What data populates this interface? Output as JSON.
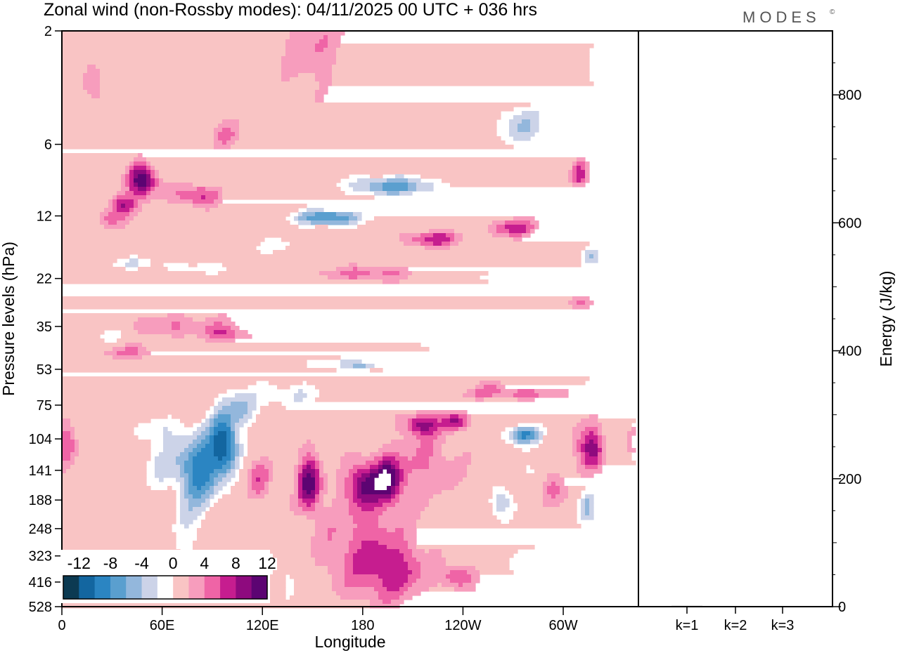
{
  "chart_data": {
    "type": "heatmap",
    "title": "Zonal wind (non-Rossby modes):  04/11/2025  00 UTC  + 036 hrs",
    "logo_text": "MODES",
    "logo_mark": "©",
    "xlabel": "Longitude",
    "ylabel": "Pressure levels (hPa)",
    "x_ticks": [
      "0",
      "60E",
      "120E",
      "180",
      "120W",
      "60W"
    ],
    "y_ticks": [
      "2",
      "6",
      "12",
      "22",
      "35",
      "53",
      "75",
      "104",
      "141",
      "188",
      "248",
      "323",
      "416",
      "528"
    ],
    "colorbar": {
      "tick_labels": [
        "-12",
        "-8",
        "-4",
        "0",
        "4",
        "8",
        "12"
      ],
      "levels": [
        -14,
        -12,
        -10,
        -8,
        -6,
        -4,
        -2,
        2,
        4,
        6,
        8,
        10,
        12,
        14
      ],
      "colors": [
        "#0c3a52",
        "#1366a0",
        "#2b85c2",
        "#5a9fcf",
        "#93b7dc",
        "#ccd3e8",
        "#ffffff",
        "#f9c4c4",
        "#f79dbd",
        "#ef64a6",
        "#c61d8f",
        "#8e0a7e",
        "#5c0472"
      ]
    },
    "regions": [
      {
        "lon": 48,
        "lev": 8.5,
        "w": 9,
        "h": 1.4,
        "amp": 12
      },
      {
        "lon": 36,
        "lev": 10.8,
        "w": 9,
        "h": 1.2,
        "amp": 8
      },
      {
        "lon": 28,
        "lev": 12.5,
        "w": 8,
        "h": 1.1,
        "amp": 5
      },
      {
        "lon": 80,
        "lev": 9.8,
        "w": 14,
        "h": 1.1,
        "amp": 7
      },
      {
        "lon": 20,
        "lev": 3.5,
        "w": 6,
        "h": 0.9,
        "amp": 4
      },
      {
        "lon": 150,
        "lev": 2.3,
        "w": 20,
        "h": 1.3,
        "amp": 4
      },
      {
        "lon": 98,
        "lev": 5.5,
        "w": 10,
        "h": 0.9,
        "amp": 4
      },
      {
        "lon": 160,
        "lev": 12.2,
        "w": 20,
        "h": 1.0,
        "amp": -11
      },
      {
        "lon": 198,
        "lev": 9.0,
        "w": 28,
        "h": 0.9,
        "amp": -9
      },
      {
        "lon": 128,
        "lev": 16.0,
        "w": 10,
        "h": 1.3,
        "amp": -4
      },
      {
        "lon": 275,
        "lev": 5.0,
        "w": 14,
        "h": 1.2,
        "amp": -6
      },
      {
        "lon": 320,
        "lev": 3.0,
        "w": 5,
        "h": 1.3,
        "amp": -3
      },
      {
        "lon": 45,
        "lev": 19.0,
        "w": 20,
        "h": 1.2,
        "amp": -4
      },
      {
        "lon": 88,
        "lev": 20.0,
        "w": 16,
        "h": 1.2,
        "amp": -4
      },
      {
        "lon": 250,
        "lev": 22.0,
        "w": 14,
        "h": 1.3,
        "amp": -4
      },
      {
        "lon": 318,
        "lev": 18.0,
        "w": 6,
        "h": 2.2,
        "amp": -6
      },
      {
        "lon": 310,
        "lev": 8.0,
        "w": 5,
        "h": 1.0,
        "amp": 7
      },
      {
        "lon": 222,
        "lev": 15.0,
        "w": 18,
        "h": 1.3,
        "amp": 7
      },
      {
        "lon": 270,
        "lev": 13.5,
        "w": 14,
        "h": 1.3,
        "amp": 7
      },
      {
        "lon": 182,
        "lev": 21.0,
        "w": 28,
        "h": 1.6,
        "amp": 5
      },
      {
        "lon": 250,
        "lev": 22.5,
        "w": 8,
        "h": 1.0,
        "amp": 3
      },
      {
        "lon": 310,
        "lev": 28.0,
        "w": 8,
        "h": 2.0,
        "amp": 4
      },
      {
        "lon": 70,
        "lev": 35.0,
        "w": 35,
        "h": 4.5,
        "amp": 4
      },
      {
        "lon": 40,
        "lev": 45.0,
        "w": 22,
        "h": 3.5,
        "amp": 4
      },
      {
        "lon": 100,
        "lev": 38.0,
        "w": 12,
        "h": 3.0,
        "amp": 5
      },
      {
        "lon": 270,
        "lev": 67.0,
        "w": 35,
        "h": 4.0,
        "amp": 5
      },
      {
        "lon": 258,
        "lev": 62.0,
        "w": 10,
        "h": 3.0,
        "amp": 3
      },
      {
        "lon": 178,
        "lev": 50.0,
        "w": 40,
        "h": 3.5,
        "amp": -4
      },
      {
        "lon": 180,
        "lev": 52.0,
        "w": 8,
        "h": 2.0,
        "amp": -4
      },
      {
        "lon": 220,
        "lev": 42.0,
        "w": 12,
        "h": 2.0,
        "amp": -2
      },
      {
        "lon": 30,
        "lev": 38.0,
        "w": 16,
        "h": 3.0,
        "amp": -3
      },
      {
        "lon": 320,
        "lev": 60.0,
        "w": 6,
        "h": 3.0,
        "amp": -3
      },
      {
        "lon": 82,
        "lev": 142.0,
        "w": 12,
        "h": 60.0,
        "amp": -11
      },
      {
        "lon": 97,
        "lev": 108.0,
        "w": 9,
        "h": 40.0,
        "amp": -13
      },
      {
        "lon": 108,
        "lev": 78.0,
        "w": 9,
        "h": 14.0,
        "amp": -6
      },
      {
        "lon": 135,
        "lev": 68.0,
        "w": 22,
        "h": 10.0,
        "amp": -4
      },
      {
        "lon": 60,
        "lev": 130.0,
        "w": 14,
        "h": 40.0,
        "amp": -4
      },
      {
        "lon": 60,
        "lev": 95.0,
        "w": 14,
        "h": 14.0,
        "amp": -3
      },
      {
        "lon": 118,
        "lev": 155.0,
        "w": 8,
        "h": 35.0,
        "amp": 5
      },
      {
        "lon": 148,
        "lev": 158.0,
        "w": 7,
        "h": 50.0,
        "amp": 11
      },
      {
        "lon": 180,
        "lev": 160.0,
        "w": 10,
        "h": 40.0,
        "amp": 9
      },
      {
        "lon": 195,
        "lev": 155.0,
        "w": 9,
        "h": 40.0,
        "amp": 10
      },
      {
        "lon": 215,
        "lev": 90.0,
        "w": 10,
        "h": 10.0,
        "amp": 8
      },
      {
        "lon": 236,
        "lev": 88.0,
        "w": 8,
        "h": 8.0,
        "amp": 8
      },
      {
        "lon": 180,
        "lev": 300.0,
        "w": 30,
        "h": 200.0,
        "amp": 5
      },
      {
        "lon": 200,
        "lev": 380.0,
        "w": 20,
        "h": 120.0,
        "amp": 5
      },
      {
        "lon": 237,
        "lev": 395.0,
        "w": 10,
        "h": 50.0,
        "amp": 6
      },
      {
        "lon": 218,
        "lev": 130.0,
        "w": 22,
        "h": 60.0,
        "amp": 4
      },
      {
        "lon": 276,
        "lev": 100.0,
        "w": 11,
        "h": 10.0,
        "amp": -10
      },
      {
        "lon": 286,
        "lev": 140.0,
        "w": 14,
        "h": 24.0,
        "amp": -3
      },
      {
        "lon": 262,
        "lev": 190.0,
        "w": 7,
        "h": 35.0,
        "amp": -6
      },
      {
        "lon": 314,
        "lev": 200.0,
        "w": 6,
        "h": 45.0,
        "amp": -6
      },
      {
        "lon": 294,
        "lev": 160.0,
        "w": 8,
        "h": 40.0,
        "amp": 6
      },
      {
        "lon": 312,
        "lev": 110.0,
        "w": 10,
        "h": 30.0,
        "amp": 4
      },
      {
        "lon": 2,
        "lev": 110.0,
        "w": 7,
        "h": 25.0,
        "amp": 6
      },
      {
        "lon": 318,
        "lev": 115.0,
        "w": 7,
        "h": 28.0,
        "amp": 6
      },
      {
        "lon": 75,
        "lev": 270.0,
        "w": 10,
        "h": 120.0,
        "amp": -3
      },
      {
        "lon": 130,
        "lev": 380.0,
        "w": 15,
        "h": 120.0,
        "amp": -3
      },
      {
        "lon": 275,
        "lev": 330.0,
        "w": 12,
        "h": 90.0,
        "amp": -3
      }
    ],
    "energy": {
      "ylabel": "Energy (J/kg)",
      "y_ticks": [
        "0",
        "200",
        "400",
        "600",
        "800"
      ],
      "y_tick_values": [
        0,
        200,
        400,
        600,
        800
      ],
      "ylim": [
        0,
        900
      ],
      "categories": [
        "k=1",
        "k=2",
        "k=3"
      ],
      "values": [
        1.2,
        0.9,
        0.6
      ]
    }
  }
}
